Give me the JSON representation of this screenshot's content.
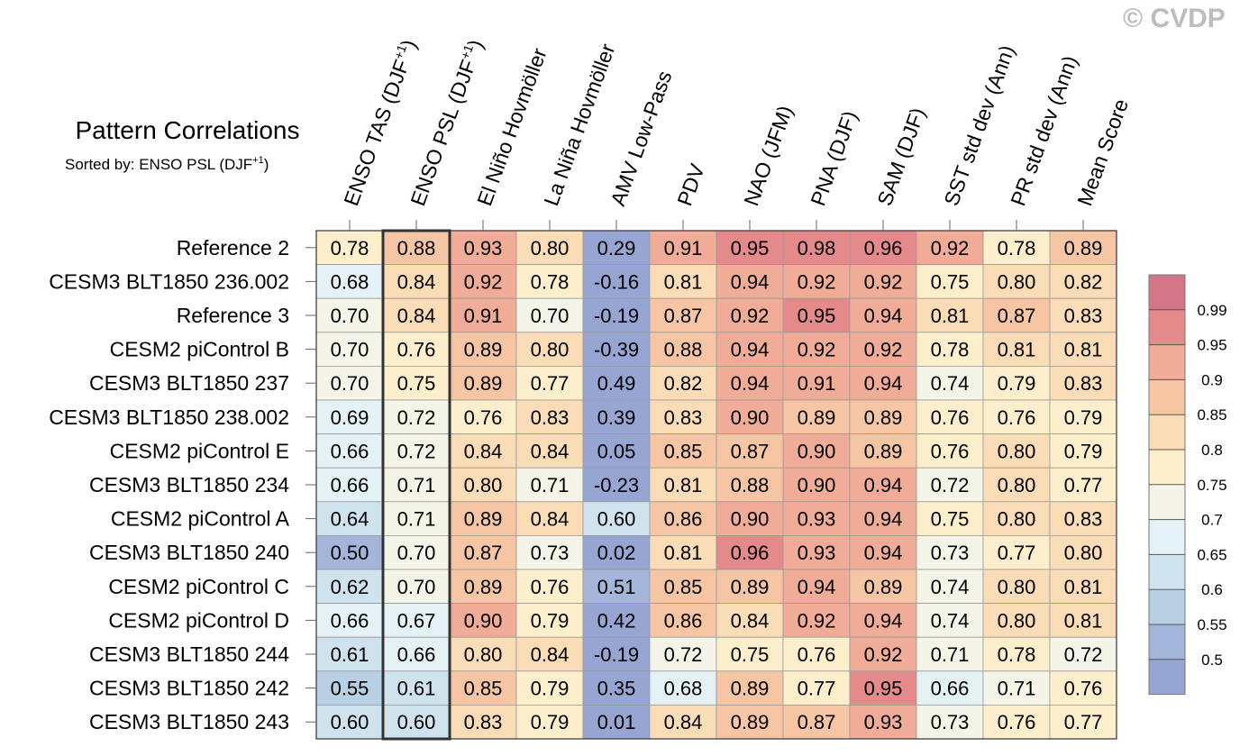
{
  "watermark": "© CVDP",
  "chart_data": {
    "type": "heatmap",
    "title": "Pattern Correlations",
    "subtitle_prefix": "Sorted by: ENSO PSL (DJF",
    "subtitle_sup": "+1",
    "subtitle_suffix": ")",
    "sorted_column": 1,
    "columns": [
      {
        "label": "ENSO TAS (DJF",
        "sup": "+1",
        "suffix": ")"
      },
      {
        "label": "ENSO PSL (DJF",
        "sup": "+1",
        "suffix": ")"
      },
      {
        "label": "El Niño Hovmöller"
      },
      {
        "label": "La Niña Hovmöller"
      },
      {
        "label": "AMV Low-Pass"
      },
      {
        "label": "PDV"
      },
      {
        "label": "NAO (JFM)"
      },
      {
        "label": "PNA (DJF)"
      },
      {
        "label": "SAM (DJF)"
      },
      {
        "label": "SST std dev (Ann)"
      },
      {
        "label": "PR std dev (Ann)"
      },
      {
        "label": "Mean Score"
      }
    ],
    "rows": [
      "Reference 2",
      "CESM3 BLT1850 236.002",
      "Reference 3",
      "CESM2 piControl B",
      "CESM3 BLT1850 237",
      "CESM3 BLT1850 238.002",
      "CESM2 piControl E",
      "CESM3 BLT1850 234",
      "CESM2 piControl A",
      "CESM3 BLT1850 240",
      "CESM2 piControl C",
      "CESM2 piControl D",
      "CESM3 BLT1850 244",
      "CESM3 BLT1850 242",
      "CESM3 BLT1850 243"
    ],
    "values": [
      [
        "0.78",
        "0.88",
        "0.93",
        "0.80",
        "0.29",
        "0.91",
        "0.95",
        "0.98",
        "0.96",
        "0.92",
        "0.78",
        "0.89"
      ],
      [
        "0.68",
        "0.84",
        "0.92",
        "0.78",
        "-0.16",
        "0.81",
        "0.94",
        "0.92",
        "0.92",
        "0.75",
        "0.80",
        "0.82"
      ],
      [
        "0.70",
        "0.84",
        "0.91",
        "0.70",
        "-0.19",
        "0.87",
        "0.92",
        "0.95",
        "0.94",
        "0.81",
        "0.87",
        "0.83"
      ],
      [
        "0.70",
        "0.76",
        "0.89",
        "0.80",
        "-0.39",
        "0.88",
        "0.94",
        "0.92",
        "0.92",
        "0.78",
        "0.81",
        "0.81"
      ],
      [
        "0.70",
        "0.75",
        "0.89",
        "0.77",
        "0.49",
        "0.82",
        "0.94",
        "0.91",
        "0.94",
        "0.74",
        "0.79",
        "0.83"
      ],
      [
        "0.69",
        "0.72",
        "0.76",
        "0.83",
        "0.39",
        "0.83",
        "0.90",
        "0.89",
        "0.89",
        "0.76",
        "0.76",
        "0.79"
      ],
      [
        "0.66",
        "0.72",
        "0.84",
        "0.84",
        "0.05",
        "0.85",
        "0.87",
        "0.90",
        "0.89",
        "0.76",
        "0.80",
        "0.79"
      ],
      [
        "0.66",
        "0.71",
        "0.80",
        "0.71",
        "-0.23",
        "0.81",
        "0.88",
        "0.90",
        "0.94",
        "0.72",
        "0.80",
        "0.77"
      ],
      [
        "0.64",
        "0.71",
        "0.89",
        "0.84",
        "0.60",
        "0.86",
        "0.90",
        "0.93",
        "0.94",
        "0.75",
        "0.80",
        "0.83"
      ],
      [
        "0.50",
        "0.70",
        "0.87",
        "0.73",
        "0.02",
        "0.81",
        "0.96",
        "0.93",
        "0.94",
        "0.73",
        "0.77",
        "0.80"
      ],
      [
        "0.62",
        "0.70",
        "0.89",
        "0.76",
        "0.51",
        "0.85",
        "0.89",
        "0.94",
        "0.89",
        "0.74",
        "0.80",
        "0.81"
      ],
      [
        "0.66",
        "0.67",
        "0.90",
        "0.79",
        "0.42",
        "0.86",
        "0.84",
        "0.92",
        "0.94",
        "0.74",
        "0.80",
        "0.81"
      ],
      [
        "0.61",
        "0.66",
        "0.80",
        "0.84",
        "-0.19",
        "0.72",
        "0.75",
        "0.76",
        "0.92",
        "0.71",
        "0.78",
        "0.72"
      ],
      [
        "0.55",
        "0.61",
        "0.85",
        "0.79",
        "0.35",
        "0.68",
        "0.89",
        "0.77",
        "0.95",
        "0.66",
        "0.71",
        "0.76"
      ],
      [
        "0.60",
        "0.60",
        "0.83",
        "0.79",
        "0.01",
        "0.84",
        "0.89",
        "0.87",
        "0.93",
        "0.73",
        "0.76",
        "0.77"
      ]
    ],
    "colorbar": {
      "levels": [
        "0.99",
        "0.95",
        "0.9",
        "0.85",
        "0.8",
        "0.75",
        "0.7",
        "0.65",
        "0.6",
        "0.55",
        "0.5"
      ],
      "colors": [
        "#d4768a",
        "#e58a8a",
        "#f0ac96",
        "#f6c6a4",
        "#fadcb6",
        "#fdefcb",
        "#f4f4e8",
        "#e4f1f5",
        "#cfe3ee",
        "#b8d0e4",
        "#a3b5d8",
        "#97a5d3"
      ]
    }
  }
}
